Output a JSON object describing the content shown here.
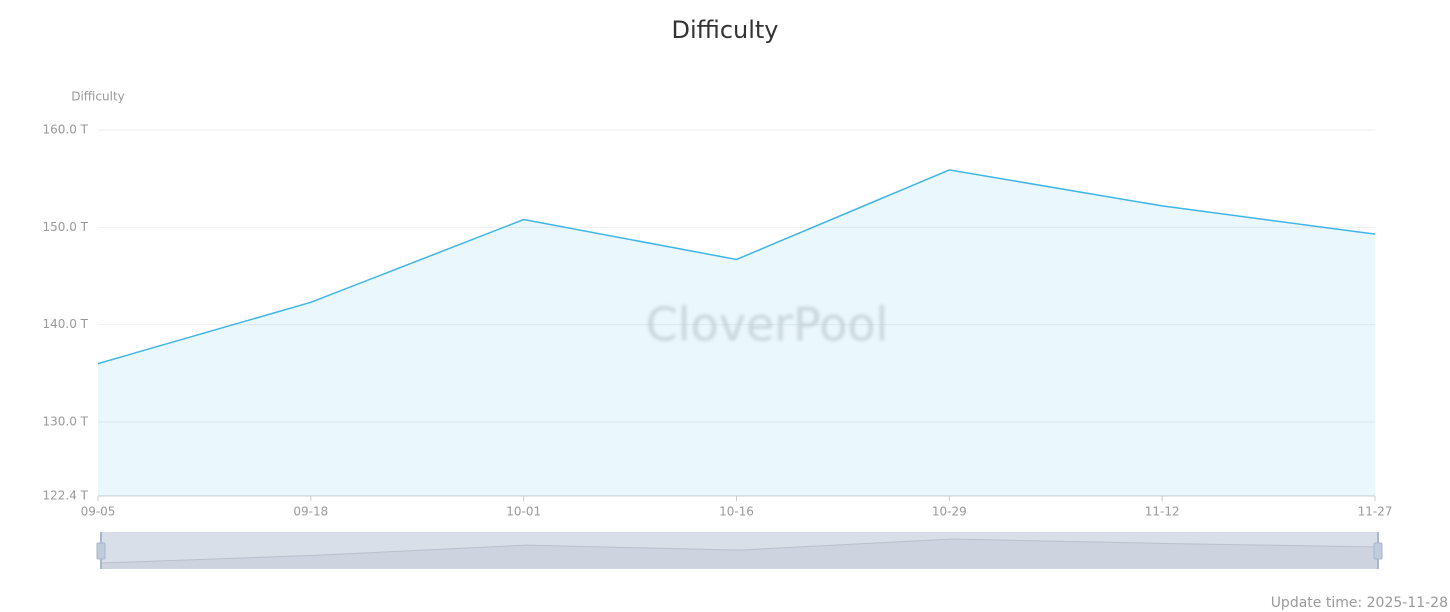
{
  "chart_data": {
    "type": "area",
    "title": "Difficulty",
    "y_axis_label": "Difficulty",
    "watermark": "CloverPool",
    "footer": "Update time: 2025-11-28",
    "categories": [
      "09-05",
      "09-18",
      "10-01",
      "10-16",
      "10-29",
      "11-12",
      "11-27"
    ],
    "series": [
      {
        "name": "Difficulty",
        "color": "#3fb5e8",
        "values": [
          136.0,
          142.3,
          150.8,
          146.7,
          155.9,
          152.2,
          149.3
        ]
      }
    ],
    "ylim": [
      122.4,
      160
    ],
    "yticks": [
      {
        "value": 122.4,
        "label": "122.4 T"
      },
      {
        "value": 130,
        "label": "130.0 T"
      },
      {
        "value": 140,
        "label": "140.0 T"
      },
      {
        "value": 150,
        "label": "150.0 T"
      },
      {
        "value": 160,
        "label": "160.0 T"
      }
    ],
    "grid": true
  }
}
